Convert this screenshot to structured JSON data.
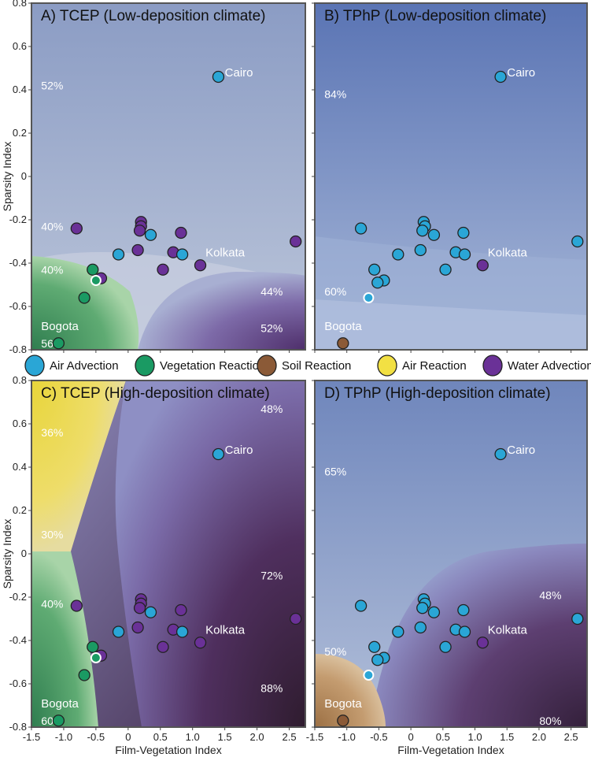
{
  "colors": {
    "air_advection": "#2aa6d6",
    "vegetation_reaction": "#1a9a63",
    "soil_reaction": "#8b5a37",
    "air_reaction": "#f2e043",
    "water_advection": "#6a3197"
  },
  "legend": [
    {
      "label": "Air Advection",
      "key": "air_advection"
    },
    {
      "label": "Vegetation Reaction",
      "key": "vegetation_reaction"
    },
    {
      "label": "Soil Reaction",
      "key": "soil_reaction"
    },
    {
      "label": "Air Reaction",
      "key": "air_reaction"
    },
    {
      "label": "Water Advection",
      "key": "water_advection"
    }
  ],
  "axes": {
    "xlabel": "Film-Vegetation Index",
    "ylabel": "Sparsity Index",
    "xlim": [
      -1.5,
      2.75
    ],
    "ylim": [
      -0.8,
      0.8
    ],
    "xticks": [
      "-1.5",
      "-1.0",
      "-0.5",
      "0",
      "0.5",
      "1.0",
      "1.5",
      "2.0",
      "2.5"
    ],
    "yticks": [
      "-0.8",
      "-0.6",
      "-0.4",
      "-0.2",
      "0",
      "0.2",
      "0.4",
      "0.6",
      "0.8"
    ]
  },
  "chart_data": [
    {
      "id": "A",
      "type": "scatter",
      "title": "A) TCEP (Low-deposition climate)",
      "annotations": [
        {
          "text": "52%",
          "x": -1.35,
          "y": 0.42
        },
        {
          "text": "40%",
          "x": -1.35,
          "y": -0.23
        },
        {
          "text": "40%",
          "x": -1.35,
          "y": -0.43
        },
        {
          "text": "56%",
          "x": -1.35,
          "y": -0.77
        },
        {
          "text": "44%",
          "x": 2.4,
          "y": -0.53
        },
        {
          "text": "52%",
          "x": 2.4,
          "y": -0.7
        }
      ],
      "labels": [
        {
          "text": "Cairo",
          "x": 1.5,
          "y": 0.48
        },
        {
          "text": "Kolkata",
          "x": 1.2,
          "y": -0.35
        },
        {
          "text": "Bogota",
          "x": -1.35,
          "y": -0.69
        }
      ],
      "points": [
        {
          "x": 1.4,
          "y": 0.46,
          "cat": "air_advection"
        },
        {
          "x": -0.8,
          "y": -0.24,
          "cat": "water_advection"
        },
        {
          "x": 0.2,
          "y": -0.21,
          "cat": "water_advection"
        },
        {
          "x": 0.2,
          "y": -0.23,
          "cat": "water_advection"
        },
        {
          "x": 0.18,
          "y": -0.25,
          "cat": "water_advection"
        },
        {
          "x": 0.35,
          "y": -0.27,
          "cat": "air_advection"
        },
        {
          "x": 0.82,
          "y": -0.26,
          "cat": "water_advection"
        },
        {
          "x": 2.6,
          "y": -0.3,
          "cat": "water_advection"
        },
        {
          "x": -0.15,
          "y": -0.36,
          "cat": "air_advection"
        },
        {
          "x": 0.15,
          "y": -0.34,
          "cat": "water_advection"
        },
        {
          "x": 0.7,
          "y": -0.35,
          "cat": "water_advection"
        },
        {
          "x": 0.84,
          "y": -0.36,
          "cat": "air_advection"
        },
        {
          "x": 1.12,
          "y": -0.41,
          "cat": "water_advection"
        },
        {
          "x": 0.54,
          "y": -0.43,
          "cat": "water_advection"
        },
        {
          "x": -0.55,
          "y": -0.43,
          "cat": "vegetation_reaction"
        },
        {
          "x": -0.42,
          "y": -0.47,
          "cat": "water_advection"
        },
        {
          "x": -0.5,
          "y": -0.48,
          "cat": "vegetation_reaction",
          "highlight": true
        },
        {
          "x": -0.68,
          "y": -0.56,
          "cat": "vegetation_reaction"
        },
        {
          "x": -1.08,
          "y": -0.77,
          "cat": "vegetation_reaction"
        }
      ]
    },
    {
      "id": "B",
      "type": "scatter",
      "title": "B) TPhP (Low-deposition climate)",
      "annotations": [
        {
          "text": "84%",
          "x": -1.35,
          "y": 0.38
        },
        {
          "text": "60%",
          "x": -1.35,
          "y": -0.53
        }
      ],
      "labels": [
        {
          "text": "Cairo",
          "x": 1.5,
          "y": 0.48
        },
        {
          "text": "Kolkata",
          "x": 1.2,
          "y": -0.35
        },
        {
          "text": "Bogota",
          "x": -1.35,
          "y": -0.69
        }
      ],
      "points": [
        {
          "x": 1.4,
          "y": 0.46,
          "cat": "air_advection"
        },
        {
          "x": -0.78,
          "y": -0.24,
          "cat": "air_advection"
        },
        {
          "x": 0.2,
          "y": -0.21,
          "cat": "air_advection"
        },
        {
          "x": 0.22,
          "y": -0.23,
          "cat": "air_advection"
        },
        {
          "x": 0.18,
          "y": -0.25,
          "cat": "air_advection"
        },
        {
          "x": 0.36,
          "y": -0.27,
          "cat": "air_advection"
        },
        {
          "x": 0.82,
          "y": -0.26,
          "cat": "air_advection"
        },
        {
          "x": 2.6,
          "y": -0.3,
          "cat": "air_advection"
        },
        {
          "x": -0.2,
          "y": -0.36,
          "cat": "air_advection"
        },
        {
          "x": 0.15,
          "y": -0.34,
          "cat": "air_advection"
        },
        {
          "x": 0.7,
          "y": -0.35,
          "cat": "air_advection"
        },
        {
          "x": 0.84,
          "y": -0.36,
          "cat": "air_advection"
        },
        {
          "x": 1.12,
          "y": -0.41,
          "cat": "water_advection"
        },
        {
          "x": 0.54,
          "y": -0.43,
          "cat": "air_advection"
        },
        {
          "x": -0.57,
          "y": -0.43,
          "cat": "air_advection"
        },
        {
          "x": -0.42,
          "y": -0.48,
          "cat": "air_advection"
        },
        {
          "x": -0.52,
          "y": -0.49,
          "cat": "air_advection"
        },
        {
          "x": -0.66,
          "y": -0.56,
          "cat": "air_advection",
          "highlight": true
        },
        {
          "x": -1.06,
          "y": -0.77,
          "cat": "soil_reaction"
        }
      ]
    },
    {
      "id": "C",
      "type": "scatter",
      "title": "C) TCEP (High-deposition climate)",
      "annotations": [
        {
          "text": "36%",
          "x": -1.35,
          "y": 0.56
        },
        {
          "text": "30%",
          "x": -1.35,
          "y": 0.09
        },
        {
          "text": "40%",
          "x": -1.35,
          "y": -0.23
        },
        {
          "text": "60%",
          "x": -1.35,
          "y": -0.77
        },
        {
          "text": "48%",
          "x": 2.4,
          "y": 0.67
        },
        {
          "text": "72%",
          "x": 2.4,
          "y": -0.1
        },
        {
          "text": "88%",
          "x": 2.4,
          "y": -0.62
        }
      ],
      "labels": [
        {
          "text": "Cairo",
          "x": 1.5,
          "y": 0.48
        },
        {
          "text": "Kolkata",
          "x": 1.2,
          "y": -0.35
        },
        {
          "text": "Bogota",
          "x": -1.35,
          "y": -0.69
        }
      ],
      "points": [
        {
          "x": 1.4,
          "y": 0.46,
          "cat": "air_advection"
        },
        {
          "x": -0.8,
          "y": -0.24,
          "cat": "water_advection"
        },
        {
          "x": 0.2,
          "y": -0.21,
          "cat": "water_advection"
        },
        {
          "x": 0.2,
          "y": -0.23,
          "cat": "water_advection"
        },
        {
          "x": 0.18,
          "y": -0.25,
          "cat": "water_advection"
        },
        {
          "x": 0.35,
          "y": -0.27,
          "cat": "air_advection"
        },
        {
          "x": 0.82,
          "y": -0.26,
          "cat": "water_advection"
        },
        {
          "x": 2.6,
          "y": -0.3,
          "cat": "water_advection"
        },
        {
          "x": -0.15,
          "y": -0.36,
          "cat": "air_advection"
        },
        {
          "x": 0.15,
          "y": -0.34,
          "cat": "water_advection"
        },
        {
          "x": 0.7,
          "y": -0.35,
          "cat": "water_advection"
        },
        {
          "x": 0.84,
          "y": -0.36,
          "cat": "air_advection"
        },
        {
          "x": 1.12,
          "y": -0.41,
          "cat": "water_advection"
        },
        {
          "x": 0.54,
          "y": -0.43,
          "cat": "water_advection"
        },
        {
          "x": -0.55,
          "y": -0.43,
          "cat": "vegetation_reaction"
        },
        {
          "x": -0.42,
          "y": -0.47,
          "cat": "water_advection"
        },
        {
          "x": -0.5,
          "y": -0.48,
          "cat": "vegetation_reaction",
          "highlight": true
        },
        {
          "x": -0.68,
          "y": -0.56,
          "cat": "vegetation_reaction"
        },
        {
          "x": -1.08,
          "y": -0.77,
          "cat": "vegetation_reaction"
        }
      ]
    },
    {
      "id": "D",
      "type": "scatter",
      "title": "D) TPhP (High-deposition climate)",
      "annotations": [
        {
          "text": "65%",
          "x": -1.35,
          "y": 0.38
        },
        {
          "text": "48%",
          "x": 2.35,
          "y": -0.19
        },
        {
          "text": "50%",
          "x": -1.35,
          "y": -0.45
        },
        {
          "text": "80%",
          "x": 2.35,
          "y": -0.77
        }
      ],
      "labels": [
        {
          "text": "Cairo",
          "x": 1.5,
          "y": 0.48
        },
        {
          "text": "Kolkata",
          "x": 1.2,
          "y": -0.35
        },
        {
          "text": "Bogota",
          "x": -1.35,
          "y": -0.69
        }
      ],
      "points": [
        {
          "x": 1.4,
          "y": 0.46,
          "cat": "air_advection"
        },
        {
          "x": -0.78,
          "y": -0.24,
          "cat": "air_advection"
        },
        {
          "x": 0.2,
          "y": -0.21,
          "cat": "air_advection"
        },
        {
          "x": 0.22,
          "y": -0.23,
          "cat": "air_advection"
        },
        {
          "x": 0.18,
          "y": -0.25,
          "cat": "air_advection"
        },
        {
          "x": 0.36,
          "y": -0.27,
          "cat": "air_advection"
        },
        {
          "x": 0.82,
          "y": -0.26,
          "cat": "air_advection"
        },
        {
          "x": 2.6,
          "y": -0.3,
          "cat": "air_advection"
        },
        {
          "x": -0.2,
          "y": -0.36,
          "cat": "air_advection"
        },
        {
          "x": 0.15,
          "y": -0.34,
          "cat": "air_advection"
        },
        {
          "x": 0.7,
          "y": -0.35,
          "cat": "air_advection"
        },
        {
          "x": 0.84,
          "y": -0.36,
          "cat": "air_advection"
        },
        {
          "x": 1.12,
          "y": -0.41,
          "cat": "water_advection"
        },
        {
          "x": 0.54,
          "y": -0.43,
          "cat": "air_advection"
        },
        {
          "x": -0.57,
          "y": -0.43,
          "cat": "air_advection"
        },
        {
          "x": -0.42,
          "y": -0.48,
          "cat": "air_advection"
        },
        {
          "x": -0.52,
          "y": -0.49,
          "cat": "air_advection"
        },
        {
          "x": -0.66,
          "y": -0.56,
          "cat": "air_advection",
          "highlight": true
        },
        {
          "x": -1.06,
          "y": -0.77,
          "cat": "soil_reaction"
        }
      ]
    }
  ]
}
